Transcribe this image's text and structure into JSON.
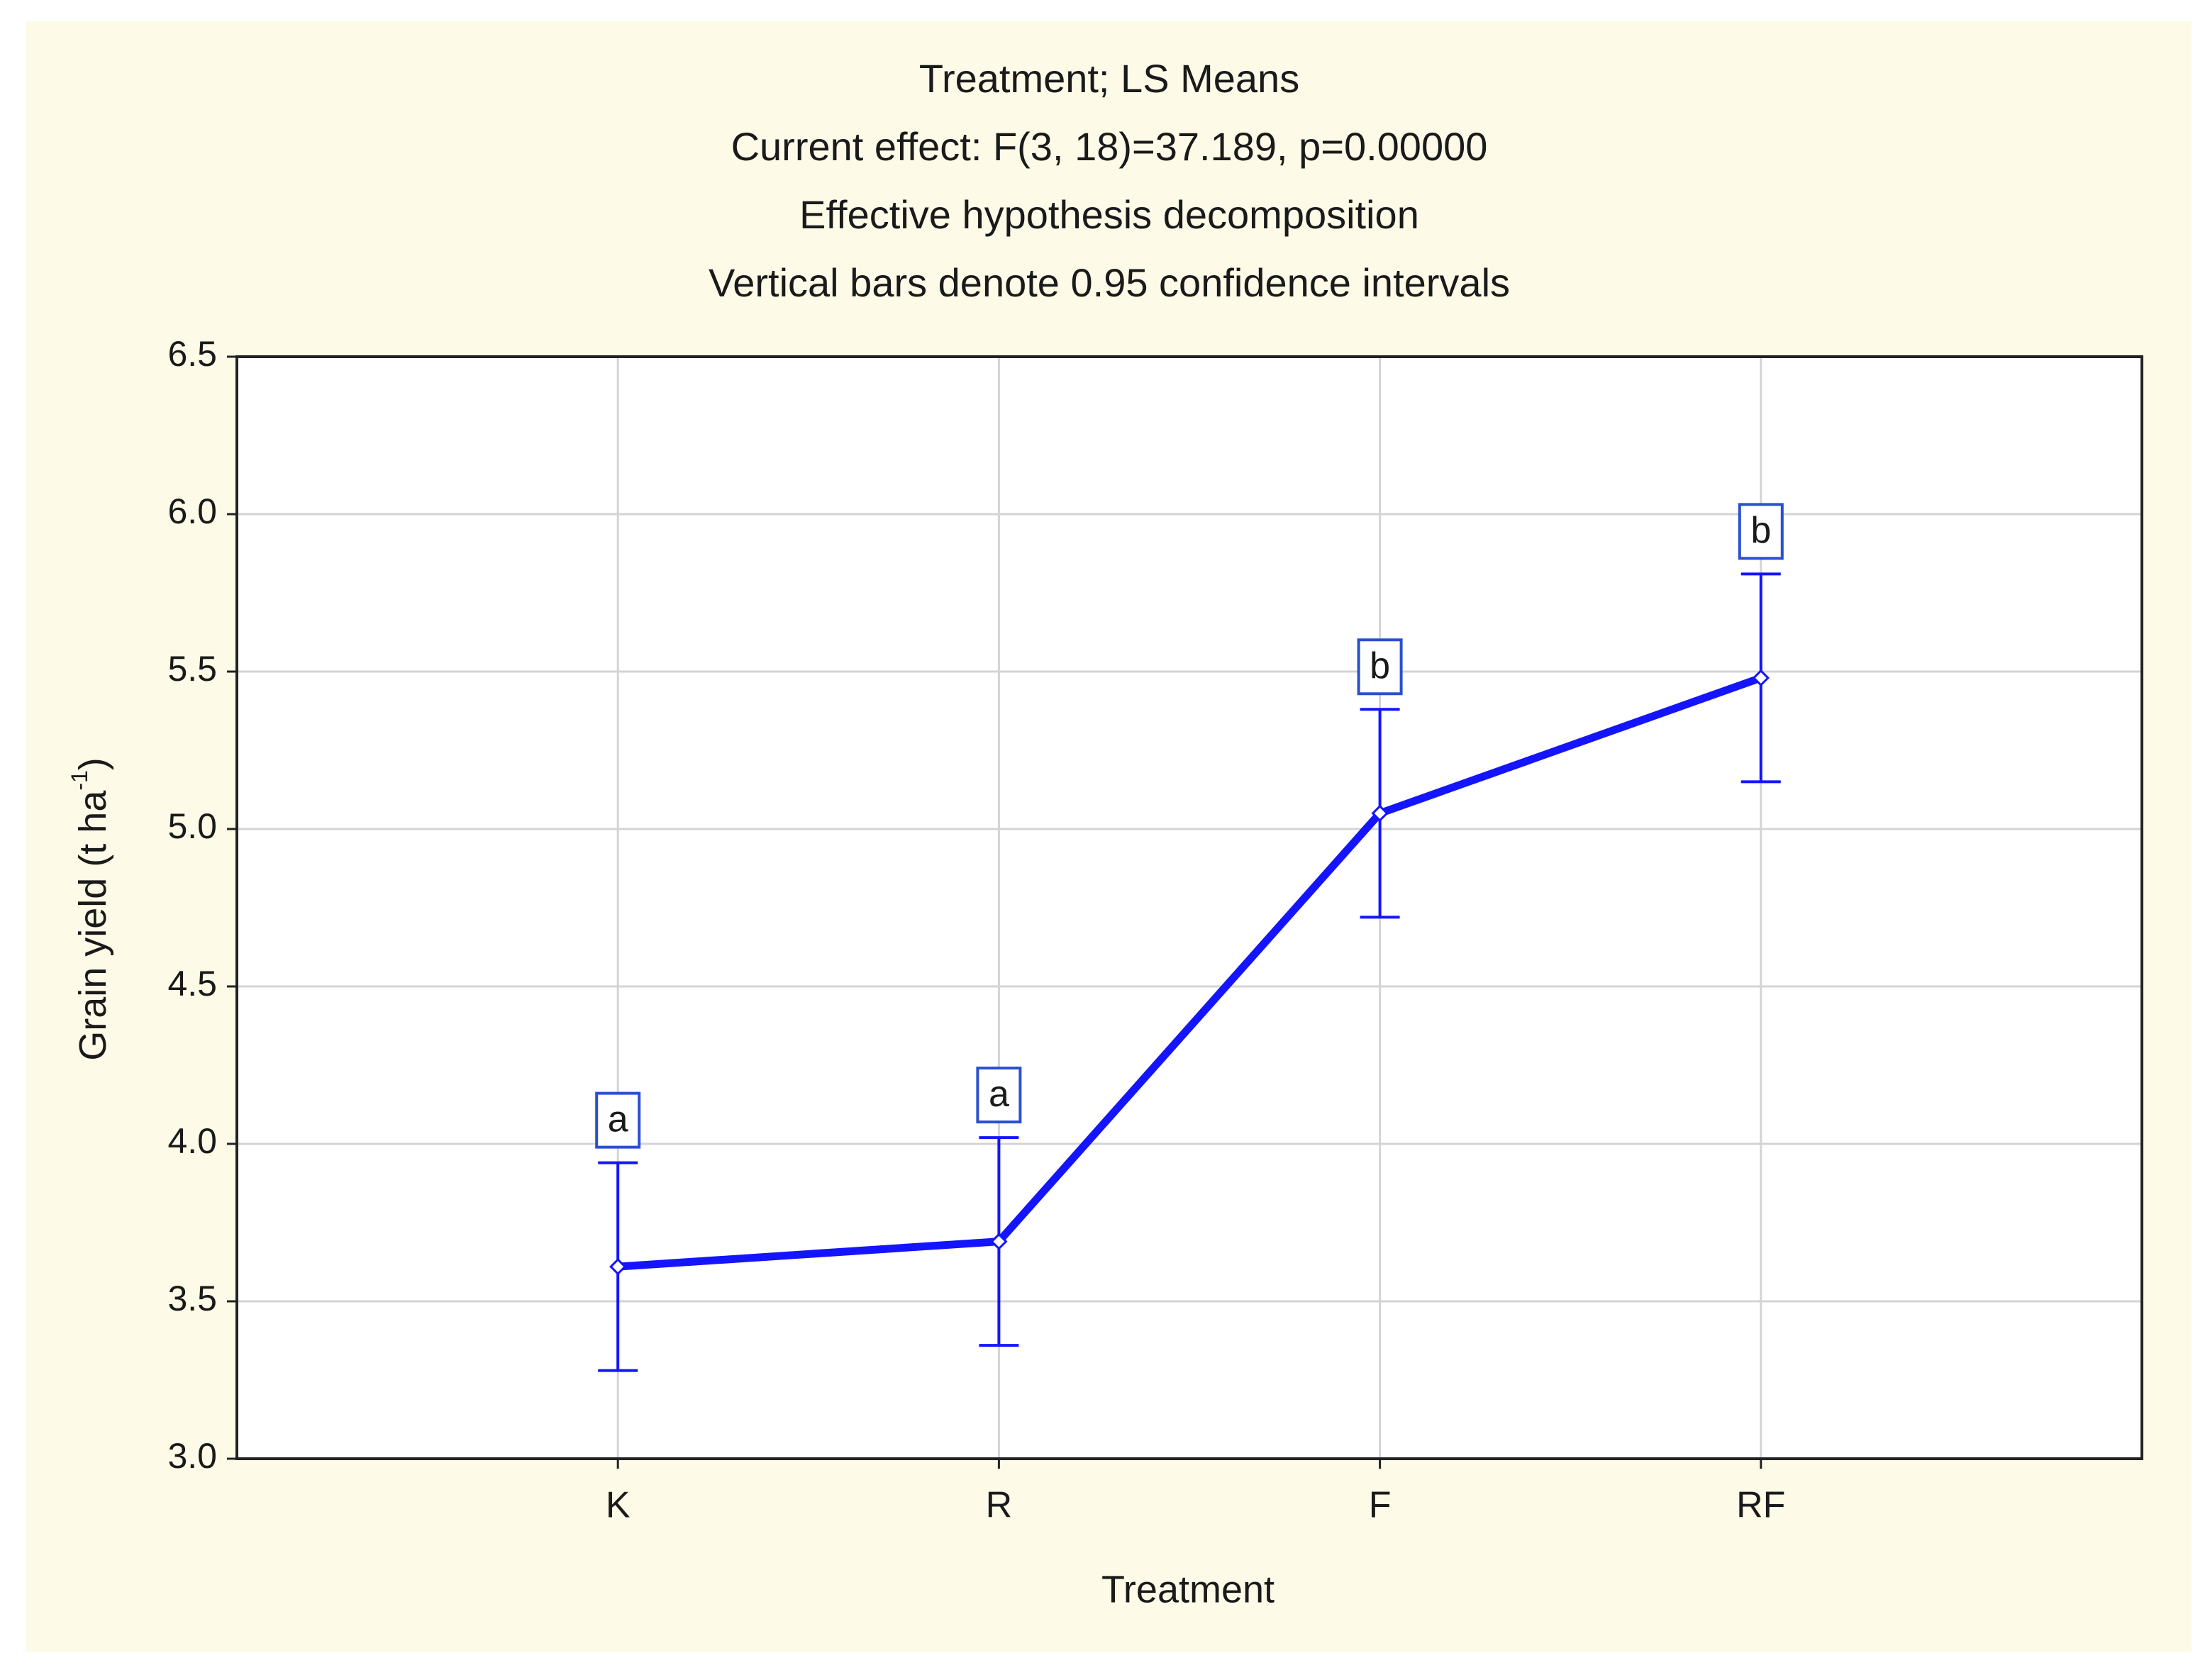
{
  "chart_data": {
    "type": "line",
    "title_lines": [
      "Treatment; LS Means",
      "Current effect: F(3, 18)=37.189, p=0.00000",
      "Effective hypothesis decomposition",
      "Vertical bars denote 0.95 confidence intervals"
    ],
    "x_label": "Treatment",
    "y_label": {
      "text": "Grain yield (t ha",
      "superscript": "-1",
      "suffix": ")"
    },
    "categories": [
      "K",
      "R",
      "F",
      "RF"
    ],
    "series": [
      {
        "name": "Treatment",
        "color": "#1414ff",
        "values": [
          3.61,
          3.69,
          5.05,
          5.48
        ],
        "errors": [
          0.33,
          0.33,
          0.33,
          0.33
        ]
      }
    ],
    "letters": [
      "a",
      "a",
      "b",
      "b"
    ],
    "ylim": [
      3.0,
      6.5
    ],
    "yticks": [
      {
        "value": 3,
        "label": "3.0"
      },
      3.5,
      {
        "value": 4,
        "label": "4.0"
      },
      4.5,
      {
        "value": 5,
        "label": "5.0"
      },
      5.5,
      {
        "value": 6,
        "label": "6.0"
      },
      6.5
    ],
    "grid": true
  }
}
